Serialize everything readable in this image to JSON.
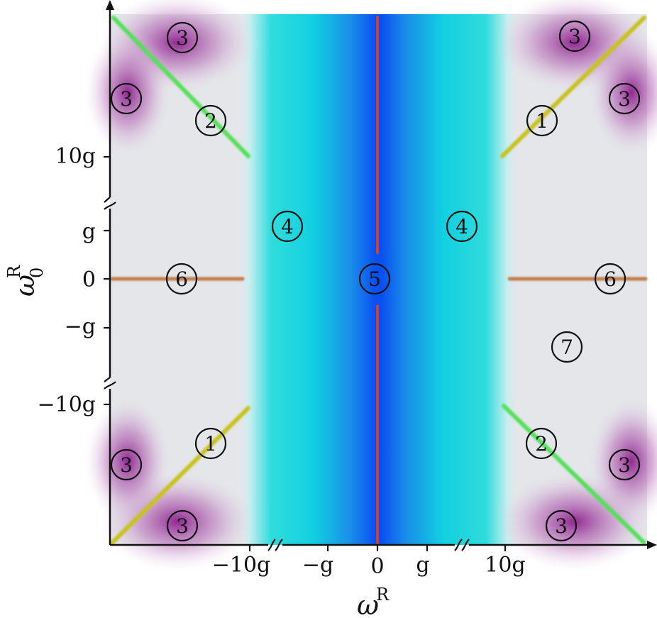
{
  "axes": {
    "x_label": "ω",
    "x_label_sup": "R",
    "y_label": "ω",
    "y_label_sub": "0",
    "y_label_sup": "R",
    "x_ticks": [
      "−10g",
      "−g",
      "0",
      "g",
      "10g"
    ],
    "y_ticks": [
      "10g",
      "g",
      "0",
      "−g",
      "−10g"
    ]
  },
  "regions": [
    {
      "num": "3",
      "where": "top-left-a"
    },
    {
      "num": "3",
      "where": "top-left-b"
    },
    {
      "num": "2",
      "where": "top-left-line"
    },
    {
      "num": "3",
      "where": "top-right-a"
    },
    {
      "num": "3",
      "where": "top-right-b"
    },
    {
      "num": "1",
      "where": "top-right-line"
    },
    {
      "num": "4",
      "where": "left-band"
    },
    {
      "num": "4",
      "where": "right-band"
    },
    {
      "num": "5",
      "where": "center"
    },
    {
      "num": "6",
      "where": "left-axis"
    },
    {
      "num": "6",
      "where": "right-axis"
    },
    {
      "num": "7",
      "where": "right-gray"
    },
    {
      "num": "1",
      "where": "bottom-left-line"
    },
    {
      "num": "3",
      "where": "bottom-left-a"
    },
    {
      "num": "3",
      "where": "bottom-left-b"
    },
    {
      "num": "2",
      "where": "bottom-right-line"
    },
    {
      "num": "3",
      "where": "bottom-right-a"
    },
    {
      "num": "3",
      "where": "bottom-right-b"
    }
  ],
  "colors": {
    "center_blue": "#0a5ff0",
    "cyan": "#17dcdc",
    "purple": "#8c1e8c",
    "gray": "#e4e6ea",
    "green_line": "#55e05a",
    "yellow_line": "#c8c21e",
    "red_line": "#e04020",
    "brown_line": "#c07a45"
  }
}
